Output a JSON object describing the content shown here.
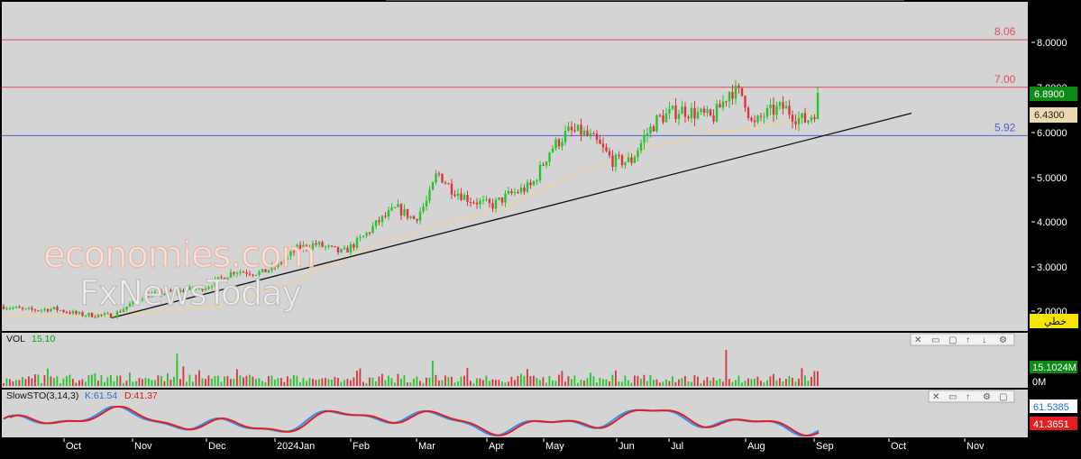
{
  "chart_data": {
    "type": "candlestick",
    "y_axis_labels": [
      "8.0000",
      "7.0000",
      "6.0000",
      "5.0000",
      "4.0000",
      "3.0000",
      "2.0000"
    ],
    "ylim": [
      1.8,
      8.8
    ],
    "x_tick_labels": [
      "Oct",
      "Nov",
      "Dec",
      "2024Jan",
      "Feb",
      "Mar",
      "Apr",
      "May",
      "Jun",
      "Jul",
      "Aug",
      "Sep",
      "Oct",
      "Nov"
    ],
    "price_tags": {
      "last_price": "6.8900",
      "ma_value": "6.4300",
      "line_label": "خطي"
    },
    "colors": {
      "up": "#27c427",
      "down": "#d9333f",
      "ma": "#e9d3a8",
      "level_red": "#e24a5a",
      "level_blue": "#4a5fd8",
      "trend": "#111111",
      "last_price_bg": "#0d8a16",
      "ma_bg": "#ecd9b0"
    },
    "horizontal_levels": [
      {
        "label": "8.06",
        "value": 8.06,
        "color": "red"
      },
      {
        "label": "7.00",
        "value": 7.0,
        "color": "red"
      },
      {
        "label": "5.92",
        "value": 5.92,
        "color": "blue"
      }
    ],
    "trendline": {
      "from": [
        124,
        1.85
      ],
      "to": [
        1011,
        6.42
      ]
    },
    "anchors": [
      [
        0,
        2.12
      ],
      [
        30,
        2.02
      ],
      [
        60,
        2.05
      ],
      [
        90,
        1.92
      ],
      [
        125,
        1.9
      ],
      [
        160,
        2.35
      ],
      [
        200,
        2.45
      ],
      [
        230,
        2.55
      ],
      [
        260,
        2.9
      ],
      [
        290,
        2.85
      ],
      [
        310,
        3.05
      ],
      [
        330,
        3.4
      ],
      [
        350,
        3.5
      ],
      [
        380,
        3.3
      ],
      [
        400,
        3.6
      ],
      [
        420,
        4.0
      ],
      [
        440,
        4.3
      ],
      [
        460,
        4.05
      ],
      [
        475,
        4.5
      ],
      [
        485,
        5.1
      ],
      [
        500,
        4.75
      ],
      [
        520,
        4.5
      ],
      [
        545,
        4.35
      ],
      [
        565,
        4.6
      ],
      [
        590,
        4.8
      ],
      [
        610,
        5.6
      ],
      [
        630,
        6.0
      ],
      [
        645,
        6.0
      ],
      [
        660,
        5.8
      ],
      [
        680,
        5.35
      ],
      [
        700,
        5.35
      ],
      [
        715,
        5.9
      ],
      [
        730,
        6.3
      ],
      [
        755,
        6.5
      ],
      [
        775,
        6.4
      ],
      [
        790,
        6.3
      ],
      [
        800,
        6.6
      ],
      [
        810,
        6.95
      ],
      [
        825,
        6.8
      ],
      [
        835,
        6.1
      ],
      [
        845,
        6.35
      ],
      [
        860,
        6.5
      ],
      [
        870,
        6.55
      ],
      [
        885,
        6.3
      ],
      [
        895,
        6.25
      ],
      [
        905,
        6.5
      ],
      [
        908,
        6.89
      ]
    ],
    "ma_anchors": [
      [
        0,
        1.9
      ],
      [
        120,
        1.9
      ],
      [
        240,
        2.1
      ],
      [
        330,
        2.7
      ],
      [
        420,
        3.5
      ],
      [
        500,
        4.0
      ],
      [
        560,
        4.3
      ],
      [
        620,
        4.9
      ],
      [
        680,
        5.4
      ],
      [
        760,
        5.85
      ],
      [
        800,
        6.0
      ],
      [
        840,
        6.1
      ],
      [
        880,
        6.3
      ],
      [
        908,
        6.43
      ]
    ],
    "volume": {
      "label": "VOL",
      "value": "15.10",
      "axis_labels": [
        "15.1024M",
        "0M"
      ],
      "max_volume": 15.1,
      "spikes": [
        {
          "x": 198,
          "value": 12.0
        },
        {
          "x": 481,
          "value": 9.5
        },
        {
          "x": 807,
          "value": 13.5
        }
      ]
    },
    "stochastic": {
      "label": "SlowSTO(3,14,3)",
      "k_label": "K:61.54",
      "d_label": "D:41.37",
      "k_value": "61.5385",
      "d_value": "41.3651",
      "k_color": "#2f8ff0",
      "d_color": "#e02020",
      "k_badge_bg": "#ffffff",
      "d_badge_bg": "#e41e1e"
    },
    "watermark": {
      "line1": "economies.com",
      "line2": "FxNewsToday"
    }
  }
}
